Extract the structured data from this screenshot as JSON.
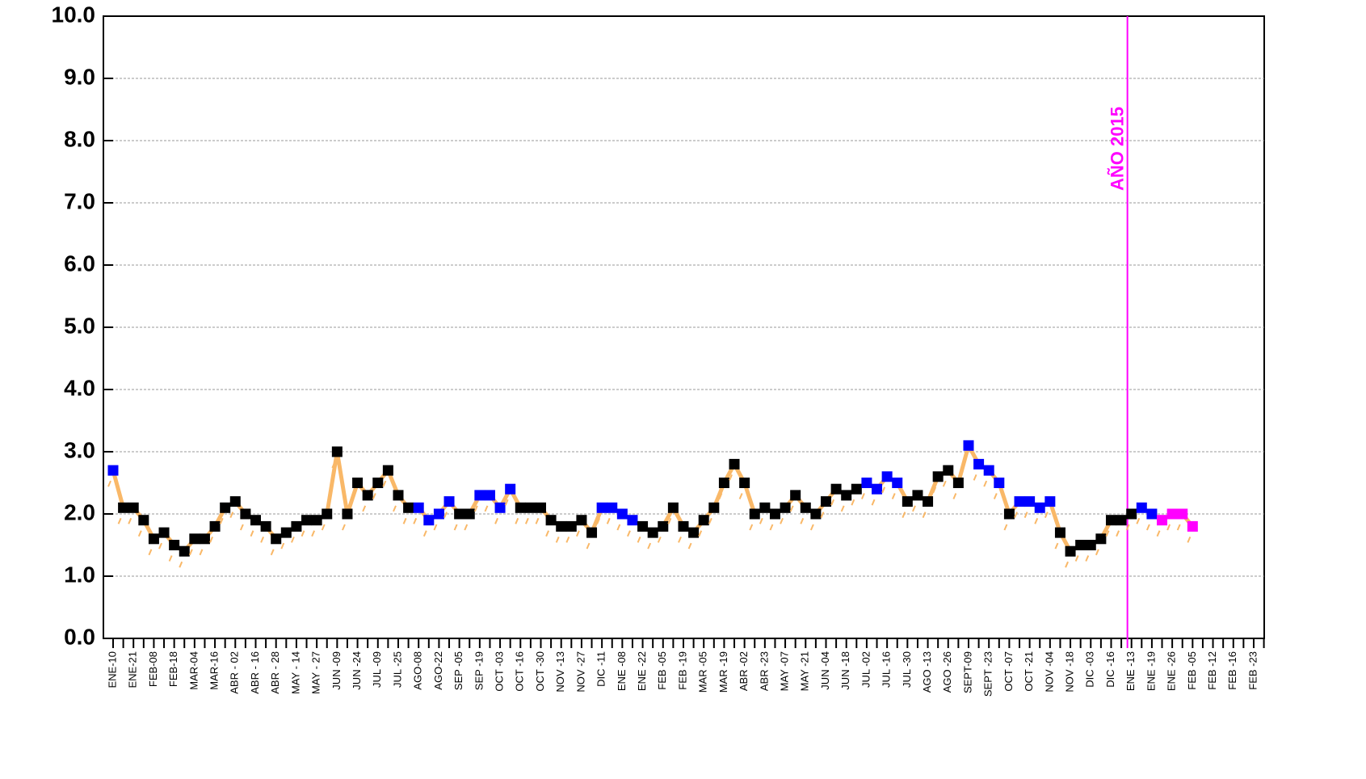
{
  "chart_data": {
    "type": "line",
    "annotation": "AÑO 2015",
    "categories": [
      "ENE-10",
      null,
      "ENE-21",
      null,
      "FEB-08",
      null,
      "FEB-18",
      null,
      "MAR-04",
      null,
      "MAR-16",
      null,
      "ABR - 02",
      null,
      "ABR - 16",
      null,
      "ABR - 28",
      null,
      "MAY - 14",
      null,
      "MAY - 27",
      null,
      "JUN -09",
      null,
      "JUN -24",
      null,
      "JUL -09",
      null,
      "JUL -25",
      null,
      "AGO-08",
      null,
      "AGO-22",
      null,
      "SEP -05",
      null,
      "SEP -19",
      null,
      "OCT -03",
      null,
      "OCT -16",
      null,
      "OCT -30",
      null,
      "NOV -13",
      null,
      "NOV -27",
      null,
      "DIC -11",
      null,
      "ENE -08",
      null,
      "ENE -22",
      null,
      "FEB -05",
      null,
      "FEB -19",
      null,
      "MAR -05",
      null,
      "MAR -19",
      null,
      "ABR -02",
      null,
      "ABR -23",
      null,
      "MAY -07",
      null,
      "MAY -21",
      null,
      "JUN -04",
      null,
      "JUN -18",
      null,
      "JUL -02",
      null,
      "JUL -16",
      null,
      "JUL -30",
      null,
      "AGO -13",
      null,
      "AGO -26",
      null,
      "SEPT-09",
      null,
      "SEPT -23",
      null,
      "OCT -07",
      null,
      "OCT -21",
      null,
      "NOV -04",
      null,
      "NOV -18",
      null,
      "DIC -03",
      null,
      "DIC -16",
      null,
      "ENE -13",
      null,
      "ENE -19",
      null,
      "ENE -26",
      null,
      "FEB -05",
      null,
      "FEB -12",
      null,
      "FEB -16",
      null,
      "FEB -23",
      null
    ],
    "series": [
      {
        "color": "#f9b868",
        "values": [
          2.7,
          2.1,
          2.1,
          1.9,
          1.6,
          1.7,
          1.5,
          1.4,
          1.6,
          1.6,
          1.8,
          2.1,
          2.2,
          2.0,
          1.9,
          1.8,
          1.6,
          1.7,
          1.8,
          1.9,
          1.9,
          2.0,
          3.0,
          2.0,
          2.5,
          2.3,
          2.5,
          2.7,
          2.3,
          2.1,
          2.1,
          1.9,
          2.0,
          2.2,
          2.0,
          2.0,
          2.3,
          2.3,
          2.1,
          2.4,
          2.1,
          2.1,
          2.1,
          1.9,
          1.8,
          1.8,
          1.9,
          1.7,
          2.1,
          2.1,
          2.0,
          1.9,
          1.8,
          1.7,
          1.8,
          2.1,
          1.8,
          1.7,
          1.9,
          2.1,
          2.5,
          2.8,
          2.5,
          2.0,
          2.1,
          2.0,
          2.1,
          2.3,
          2.1,
          2.0,
          2.2,
          2.4,
          2.3,
          2.4,
          2.5,
          2.4,
          2.6,
          2.5,
          2.2,
          2.3,
          2.2,
          2.6,
          2.7,
          2.5,
          3.1,
          2.8,
          2.7,
          2.5,
          2.0,
          2.2,
          2.2,
          2.1,
          2.2,
          1.7,
          1.4,
          1.5,
          1.5,
          1.6,
          1.9,
          1.9,
          2.0,
          2.1,
          2.0,
          1.9,
          2.0,
          2.0,
          1.8,
          null,
          null,
          null,
          null,
          null,
          null,
          null
        ],
        "marker_colors": [
          "#0000ff",
          "#000000",
          "#000000",
          "#000000",
          "#000000",
          "#000000",
          "#000000",
          "#000000",
          "#000000",
          "#000000",
          "#000000",
          "#000000",
          "#000000",
          "#000000",
          "#000000",
          "#000000",
          "#000000",
          "#000000",
          "#000000",
          "#000000",
          "#000000",
          "#000000",
          "#000000",
          "#000000",
          "#000000",
          "#000000",
          "#000000",
          "#000000",
          "#000000",
          "#000000",
          "#0000ff",
          "#0000ff",
          "#0000ff",
          "#0000ff",
          "#000000",
          "#000000",
          "#0000ff",
          "#0000ff",
          "#0000ff",
          "#0000ff",
          "#000000",
          "#000000",
          "#000000",
          "#000000",
          "#000000",
          "#000000",
          "#000000",
          "#000000",
          "#0000ff",
          "#0000ff",
          "#0000ff",
          "#0000ff",
          "#000000",
          "#000000",
          "#000000",
          "#000000",
          "#000000",
          "#000000",
          "#000000",
          "#000000",
          "#000000",
          "#000000",
          "#000000",
          "#000000",
          "#000000",
          "#000000",
          "#000000",
          "#000000",
          "#000000",
          "#000000",
          "#000000",
          "#000000",
          "#000000",
          "#000000",
          "#0000ff",
          "#0000ff",
          "#0000ff",
          "#0000ff",
          "#000000",
          "#000000",
          "#000000",
          "#000000",
          "#000000",
          "#000000",
          "#0000ff",
          "#0000ff",
          "#0000ff",
          "#0000ff",
          "#000000",
          "#0000ff",
          "#0000ff",
          "#0000ff",
          "#0000ff",
          "#000000",
          "#000000",
          "#000000",
          "#000000",
          "#000000",
          "#000000",
          "#000000",
          "#000000",
          "#0000ff",
          "#0000ff",
          "#ff00ff",
          "#ff00ff",
          "#ff00ff",
          "#ff00ff",
          null,
          null,
          null,
          null,
          null,
          null,
          null
        ]
      }
    ],
    "marker_line_color": "#ff00ff",
    "ylim": [
      0,
      10
    ],
    "yticks": [
      {
        "value": 0,
        "label": "0.0"
      },
      {
        "value": 1,
        "label": "1.0"
      },
      {
        "value": 2,
        "label": "2.0"
      },
      {
        "value": 3,
        "label": "3.0"
      },
      {
        "value": 4,
        "label": "4.0"
      },
      {
        "value": 5,
        "label": "5.0"
      },
      {
        "value": 6,
        "label": "6.0"
      },
      {
        "value": 7,
        "label": "7.0"
      },
      {
        "value": 8,
        "label": "8.0"
      },
      {
        "value": 9,
        "label": "9.0"
      },
      {
        "value": 10,
        "label": "10.0"
      }
    ],
    "grid": true
  }
}
